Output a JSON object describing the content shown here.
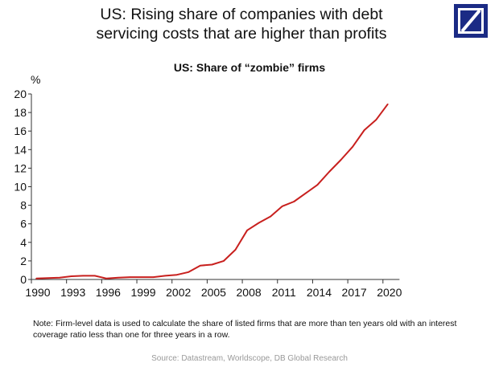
{
  "headline": [
    "US: Rising share of companies with debt",
    "servicing costs that are higher than profits"
  ],
  "logo": {
    "name": "deutsche-bank-logo",
    "color": "#1b2b85"
  },
  "chart_data": {
    "type": "line",
    "title": "US: Share of “zombie” firms",
    "ylabel": "%",
    "xlabel": "",
    "xlim": [
      1990,
      2021
    ],
    "ylim": [
      0,
      20
    ],
    "yticks": [
      0,
      2,
      4,
      6,
      8,
      10,
      12,
      14,
      16,
      18,
      20
    ],
    "xticks": [
      1990,
      1993,
      1996,
      1999,
      2002,
      2005,
      2008,
      2011,
      2014,
      2017,
      2020
    ],
    "grid": false,
    "line_color": "#c8201e",
    "x": [
      1990,
      1991,
      1992,
      1993,
      1994,
      1995,
      1996,
      1997,
      1998,
      1999,
      2000,
      2001,
      2002,
      2003,
      2004,
      2005,
      2006,
      2007,
      2008,
      2009,
      2010,
      2011,
      2012,
      2013,
      2014,
      2015,
      2016,
      2017,
      2018,
      2019,
      2020
    ],
    "values": [
      0.1,
      0.15,
      0.2,
      0.35,
      0.4,
      0.4,
      0.1,
      0.2,
      0.25,
      0.25,
      0.25,
      0.4,
      0.5,
      0.8,
      1.5,
      1.6,
      2.0,
      3.2,
      5.3,
      6.1,
      6.8,
      7.9,
      8.4,
      9.3,
      10.2,
      11.6,
      12.9,
      14.3,
      16.1,
      17.2,
      18.9
    ]
  },
  "note": "Note: Firm-level data is used to calculate the share of listed firms that are more than ten years old with an interest coverage ratio less than one for three years in a row.",
  "source": "Source: Datastream, Worldscope, DB Global Research"
}
